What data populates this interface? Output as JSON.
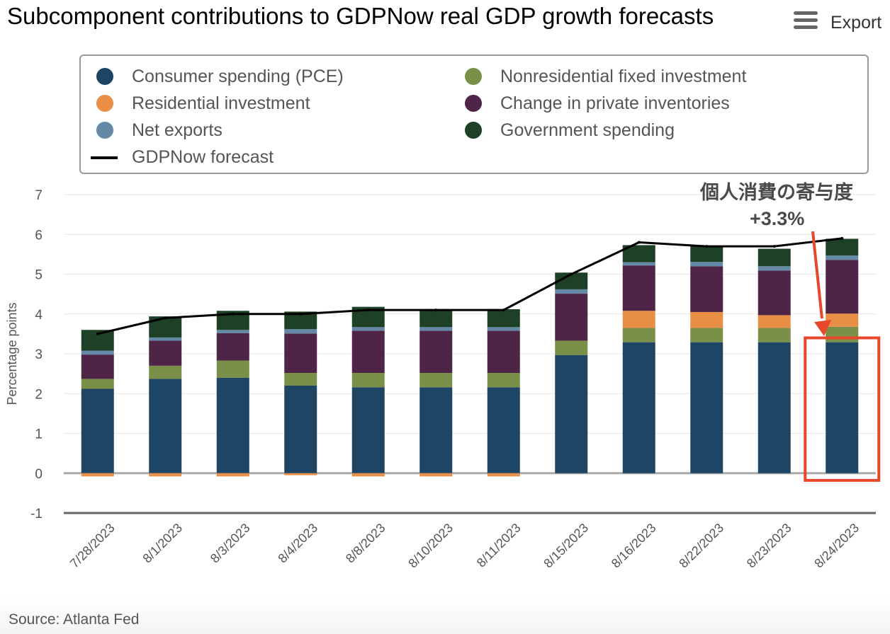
{
  "title": "Subcomponent contributions to GDPNow real GDP growth forecasts",
  "export": {
    "label": "Export",
    "icon": "hamburger-menu-icon"
  },
  "legend": {
    "items": [
      {
        "label": "Consumer spending (PCE)",
        "color": "#1f4564",
        "symbol": "dot"
      },
      {
        "label": "Nonresidential fixed investment",
        "color": "#7a8f48",
        "symbol": "dot"
      },
      {
        "label": "Residential investment",
        "color": "#e98f45",
        "symbol": "dot"
      },
      {
        "label": "Change in private inventories",
        "color": "#4e2447",
        "symbol": "dot"
      },
      {
        "label": "Net exports",
        "color": "#6389a6",
        "symbol": "dot"
      },
      {
        "label": "Government spending",
        "color": "#1e4026",
        "symbol": "dot"
      },
      {
        "label": "GDPNow forecast",
        "color": "#000000",
        "symbol": "line"
      }
    ]
  },
  "annotation": {
    "line1": "個人消費の寄与度",
    "line2": "+3.3%",
    "color": "#e8472b"
  },
  "source": "Source: Atlanta Fed",
  "chart_data": {
    "type": "bar",
    "stacked": true,
    "ylabel": "Percentage points",
    "ylim": [
      -1,
      7
    ],
    "yticks": [
      -1,
      0,
      1,
      2,
      3,
      4,
      5,
      6,
      7
    ],
    "grid": true,
    "legend_position": "top",
    "categories": [
      "7/28/2023",
      "8/1/2023",
      "8/3/2023",
      "8/4/2023",
      "8/8/2023",
      "8/10/2023",
      "8/11/2023",
      "8/15/2023",
      "8/16/2023",
      "8/22/2023",
      "8/23/2023",
      "8/24/2023"
    ],
    "series": [
      {
        "name": "Consumer spending (PCE)",
        "color": "#1f4564",
        "values": [
          2.12,
          2.37,
          2.4,
          2.2,
          2.16,
          2.16,
          2.16,
          2.97,
          3.29,
          3.29,
          3.29,
          3.29
        ]
      },
      {
        "name": "Nonresidential fixed investment",
        "color": "#7a8f48",
        "values": [
          0.25,
          0.33,
          0.43,
          0.32,
          0.36,
          0.36,
          0.36,
          0.36,
          0.36,
          0.36,
          0.36,
          0.39
        ]
      },
      {
        "name": "Residential investment",
        "color": "#e98f45",
        "values": [
          -0.08,
          -0.08,
          -0.08,
          -0.05,
          -0.08,
          -0.08,
          -0.08,
          0.0,
          0.43,
          0.4,
          0.32,
          0.33
        ]
      },
      {
        "name": "Change in private inventories",
        "color": "#4e2447",
        "values": [
          0.61,
          0.63,
          0.69,
          0.99,
          1.06,
          1.06,
          1.06,
          1.18,
          1.14,
          1.15,
          1.12,
          1.35
        ]
      },
      {
        "name": "Net exports",
        "color": "#6389a6",
        "values": [
          0.1,
          0.08,
          0.08,
          0.11,
          0.09,
          0.09,
          0.09,
          0.11,
          0.08,
          0.11,
          0.11,
          0.11
        ]
      },
      {
        "name": "Government spending",
        "color": "#1e4026",
        "values": [
          0.52,
          0.53,
          0.48,
          0.44,
          0.51,
          0.45,
          0.45,
          0.42,
          0.43,
          0.41,
          0.44,
          0.42
        ]
      }
    ],
    "line": {
      "name": "GDPNow forecast",
      "color": "#000000",
      "values": [
        3.5,
        3.9,
        4.0,
        4.0,
        4.1,
        4.1,
        4.1,
        5.0,
        5.8,
        5.7,
        5.7,
        5.9
      ]
    }
  }
}
